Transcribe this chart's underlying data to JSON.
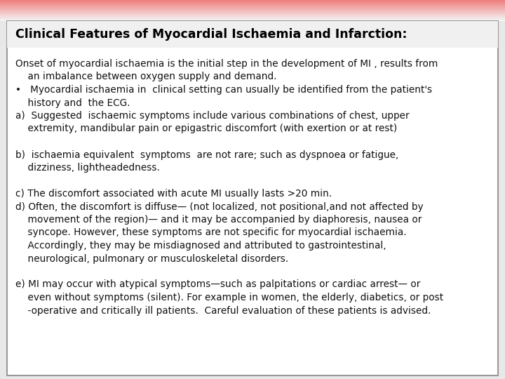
{
  "title": "Clinical Features of Myocardial Ischaemia and Infarction:",
  "title_color": "#000000",
  "title_fontsize": 12.5,
  "body_fontsize": 9.8,
  "bg_color": "#ffffff",
  "border_color": "#999999",
  "fig_bg": "#e8e8e8",
  "lines": [
    {
      "text": "Onset of myocardial ischaemia is the initial step in the development of MI , results from"
    },
    {
      "text": "    an imbalance between oxygen supply and demand."
    },
    {
      "text": "•   Myocardial ischaemia in  clinical setting can usually be identified from the patient's"
    },
    {
      "text": "    history and  the ECG."
    },
    {
      "text": "a)  Suggested  ischaemic symptoms include various combinations of chest, upper"
    },
    {
      "text": "    extremity, mandibular pain or epigastric discomfort (with exertion or at rest)"
    },
    {
      "text": ""
    },
    {
      "text": "b)  ischaemia equivalent  symptoms  are not rare; such as dyspnoea or fatigue,"
    },
    {
      "text": "    dizziness, lightheadedness."
    },
    {
      "text": ""
    },
    {
      "text": "c) The discomfort associated with acute MI usually lasts >20 min."
    },
    {
      "text": "d) Often, the discomfort is diffuse— (not localized, not positional,and not affected by"
    },
    {
      "text": "    movement of the region)— and it may be accompanied by diaphoresis, nausea or"
    },
    {
      "text": "    syncope. However, these symptoms are not specific for myocardial ischaemia."
    },
    {
      "text": "    Accordingly, they may be misdiagnosed and attributed to gastrointestinal,"
    },
    {
      "text": "    neurological, pulmonary or musculoskeletal disorders."
    },
    {
      "text": ""
    },
    {
      "text": "e) MI may occur with atypical symptoms—such as palpitations or cardiac arrest— or"
    },
    {
      "text": "    even without symptoms (silent). For example in women, the elderly, diabetics, or post"
    },
    {
      "text": "    -operative and critically ill patients.  Careful evaluation of these patients is advised."
    }
  ]
}
